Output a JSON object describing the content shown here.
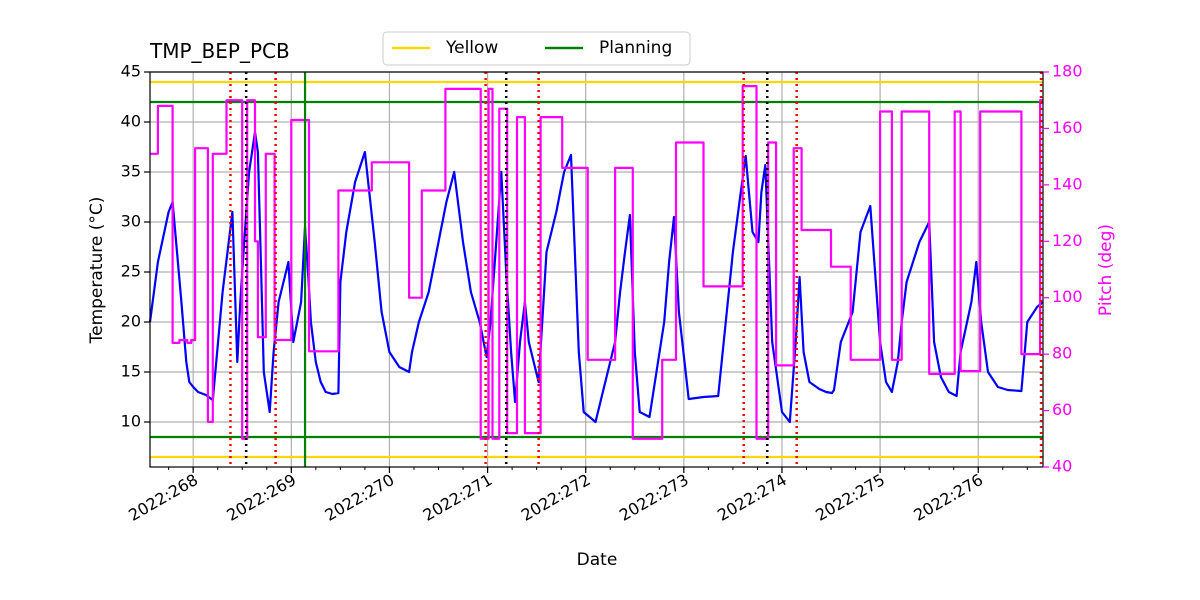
{
  "chart_data": {
    "type": "line",
    "title": "TMP_BEP_PCB",
    "xlabel": "Date",
    "ylabel": "Temperature ($^\\circ$C)",
    "ylabel_display": "Temperature (°C)",
    "y2label": "Pitch (deg)",
    "xlim": [
      267.56,
      276.66
    ],
    "ylim": [
      5.5,
      45
    ],
    "y2lim": [
      40,
      180
    ],
    "x_ticks": [
      {
        "value": 268,
        "label": "2022:268"
      },
      {
        "value": 269,
        "label": "2022:269"
      },
      {
        "value": 270,
        "label": "2022:270"
      },
      {
        "value": 271,
        "label": "2022:271"
      },
      {
        "value": 272,
        "label": "2022:272"
      },
      {
        "value": 273,
        "label": "2022:273"
      },
      {
        "value": 274,
        "label": "2022:274"
      },
      {
        "value": 275,
        "label": "2022:275"
      },
      {
        "value": 276,
        "label": "2022:276"
      }
    ],
    "y_ticks": [
      {
        "value": 10,
        "label": "10"
      },
      {
        "value": 15,
        "label": "15"
      },
      {
        "value": 20,
        "label": "20"
      },
      {
        "value": 25,
        "label": "25"
      },
      {
        "value": 30,
        "label": "30"
      },
      {
        "value": 35,
        "label": "35"
      },
      {
        "value": 40,
        "label": "40"
      },
      {
        "value": 45,
        "label": "45"
      }
    ],
    "y2_ticks": [
      {
        "value": 40,
        "label": "40"
      },
      {
        "value": 60,
        "label": "60"
      },
      {
        "value": 80,
        "label": "80"
      },
      {
        "value": 100,
        "label": "100"
      },
      {
        "value": 120,
        "label": "120"
      },
      {
        "value": 140,
        "label": "140"
      },
      {
        "value": 160,
        "label": "160"
      },
      {
        "value": 180,
        "label": "180"
      }
    ],
    "grid": true,
    "legend": {
      "placement": "top-center",
      "entries": [
        {
          "name": "Yellow",
          "color": "#ffd700"
        },
        {
          "name": "Planning",
          "color": "#008000"
        }
      ]
    },
    "limit_lines": [
      {
        "name": "Yellow",
        "value": 44,
        "color": "#ffd700"
      },
      {
        "name": "Yellow",
        "value": 6.5,
        "color": "#ffd700"
      },
      {
        "name": "Planning",
        "value": 42,
        "color": "#008000"
      },
      {
        "name": "Planning",
        "value": 8.5,
        "color": "#008000"
      }
    ],
    "green_event_x": [
      269.14
    ],
    "red_event_x": [
      268.38,
      268.84,
      270.98,
      271.52,
      273.61,
      274.15,
      276.64
    ],
    "black_event_x": [
      268.54,
      271.19,
      273.85
    ],
    "series": [
      {
        "name": "Temperature",
        "axis": "left",
        "color": "#0000ff",
        "x": [
          267.56,
          267.64,
          267.75,
          267.79,
          267.88,
          267.93,
          267.96,
          268.0,
          268.05,
          268.13,
          268.2,
          268.3,
          268.4,
          268.45,
          268.48,
          268.52,
          268.57,
          268.63,
          268.66,
          268.69,
          268.72,
          268.78,
          268.82,
          268.87,
          268.92,
          268.97,
          269.02,
          269.1,
          269.14,
          269.17,
          269.2,
          269.25,
          269.3,
          269.35,
          269.42,
          269.48,
          269.5,
          269.56,
          269.65,
          269.75,
          269.85,
          269.92,
          270.0,
          270.1,
          270.2,
          270.23,
          270.3,
          270.4,
          270.5,
          270.58,
          270.66,
          270.75,
          270.83,
          270.92,
          270.99,
          271.03,
          271.11,
          271.14,
          271.19,
          271.24,
          271.28,
          271.33,
          271.38,
          271.42,
          271.52,
          271.6,
          271.7,
          271.78,
          271.85,
          271.93,
          271.98,
          272.1,
          272.3,
          272.35,
          272.4,
          272.45,
          272.5,
          272.55,
          272.65,
          272.8,
          272.85,
          272.9,
          272.95,
          273.05,
          273.2,
          273.35,
          273.5,
          273.58,
          273.63,
          273.7,
          273.76,
          273.79,
          273.83,
          273.9,
          274.0,
          274.08,
          274.14,
          274.18,
          274.22,
          274.28,
          274.38,
          274.45,
          274.51,
          274.53,
          274.6,
          274.68,
          274.72,
          274.8,
          274.9,
          275.0,
          275.06,
          275.12,
          275.18,
          275.22,
          275.27,
          275.4,
          275.5,
          275.55,
          275.62,
          275.7,
          275.78,
          275.82,
          275.93,
          275.98,
          276.03,
          276.1,
          276.2,
          276.3,
          276.44,
          276.5,
          276.6,
          276.66
        ],
        "y": [
          20,
          26,
          31,
          32,
          22,
          16,
          14,
          13.5,
          13,
          12.7,
          12.2,
          23,
          31,
          16,
          22,
          28,
          35,
          39,
          37,
          26,
          15,
          11,
          17,
          22,
          24,
          26,
          18,
          22,
          29.5,
          25,
          20,
          16,
          14,
          13,
          12.8,
          12.9,
          24,
          29,
          34,
          37,
          28,
          21,
          17,
          15.5,
          15,
          17,
          20,
          23,
          28,
          32,
          35,
          28,
          23,
          20,
          16.5,
          20,
          31,
          35,
          25,
          17,
          12,
          18,
          22,
          18,
          14,
          27,
          31,
          35,
          36.7,
          17,
          11,
          10,
          18,
          23,
          27,
          30.7,
          17,
          11,
          10.5,
          20,
          26,
          30.5,
          21,
          12.3,
          12.5,
          12.6,
          27,
          33,
          36.6,
          29,
          28,
          33,
          35.7,
          18,
          11,
          10,
          18,
          24.5,
          17,
          14,
          13.3,
          13,
          12.9,
          13.2,
          18,
          20,
          21,
          29,
          31.6,
          18,
          14,
          13,
          16,
          20,
          24,
          28,
          30,
          18,
          14.5,
          13,
          12.6,
          17,
          22,
          26,
          20,
          15,
          13.5,
          13.2,
          13.1,
          20,
          21.5,
          22
        ]
      },
      {
        "name": "Pitch",
        "axis": "right",
        "color": "#ff00ff",
        "x": [
          267.56,
          267.64,
          267.64,
          267.79,
          267.79,
          267.86,
          267.86,
          267.94,
          267.94,
          267.98,
          267.98,
          268.02,
          268.02,
          268.15,
          268.15,
          268.2,
          268.2,
          268.27,
          268.27,
          268.34,
          268.34,
          268.5,
          268.5,
          268.55,
          268.55,
          268.63,
          268.63,
          268.66,
          268.66,
          268.74,
          268.74,
          268.83,
          268.83,
          269.0,
          269.0,
          269.18,
          269.18,
          269.48,
          269.48,
          269.82,
          269.82,
          270.2,
          270.2,
          270.33,
          270.33,
          270.57,
          270.57,
          270.93,
          270.93,
          271.01,
          271.01,
          271.05,
          271.05,
          271.12,
          271.12,
          271.2,
          271.2,
          271.3,
          271.3,
          271.38,
          271.38,
          271.54,
          271.54,
          271.76,
          271.76,
          272.02,
          272.02,
          272.3,
          272.3,
          272.48,
          272.48,
          272.78,
          272.78,
          272.92,
          272.92,
          273.2,
          273.2,
          273.6,
          273.6,
          273.74,
          273.74,
          273.86,
          273.86,
          273.94,
          273.94,
          274.12,
          274.12,
          274.2,
          274.2,
          274.5,
          274.5,
          274.7,
          274.7,
          275.0,
          275.0,
          275.12,
          275.12,
          275.22,
          275.22,
          275.5,
          275.5,
          275.76,
          275.76,
          275.82,
          275.82,
          276.02,
          276.02,
          276.44,
          276.44,
          276.63,
          276.63,
          276.66
        ],
        "y": [
          151,
          151,
          168,
          168,
          84,
          84,
          85,
          85,
          84,
          84,
          85,
          85,
          153,
          153,
          56,
          56,
          151,
          151,
          151,
          151,
          170,
          170,
          50,
          50,
          170,
          170,
          120,
          120,
          86,
          86,
          151,
          151,
          85,
          85,
          163,
          163,
          81,
          81,
          138,
          138,
          148,
          148,
          100,
          100,
          138,
          138,
          174,
          174,
          50,
          50,
          174,
          174,
          50,
          50,
          167,
          167,
          52,
          52,
          164,
          164,
          52,
          52,
          164,
          164,
          146,
          146,
          78,
          78,
          146,
          146,
          50,
          50,
          78,
          78,
          155,
          155,
          104,
          104,
          175,
          175,
          50,
          50,
          155,
          155,
          76,
          76,
          153,
          153,
          124,
          124,
          111,
          111,
          78,
          78,
          166,
          166,
          78,
          78,
          166,
          166,
          73,
          73,
          166,
          166,
          74,
          74,
          166,
          166,
          80,
          80,
          170,
          170
        ]
      }
    ]
  }
}
